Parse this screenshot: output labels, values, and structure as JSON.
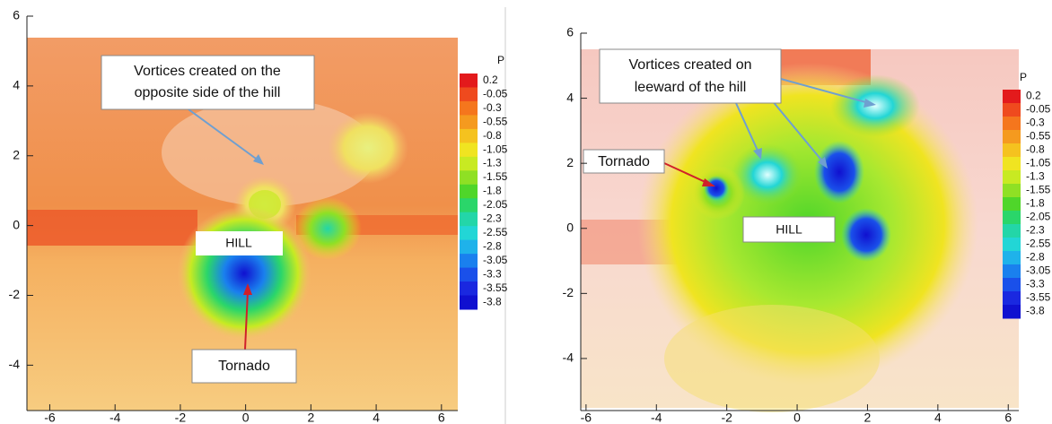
{
  "chart_data": [
    {
      "type": "contour",
      "xlim": [
        -6.7,
        6.5
      ],
      "ylim": [
        -5.3,
        6
      ],
      "xticks": [
        -6,
        -4,
        -2,
        0,
        2,
        4,
        6
      ],
      "yticks": [
        -4,
        -2,
        0,
        2,
        4,
        6
      ],
      "annotations": [
        [
          "Vortices created on the",
          "opposite side of the hill"
        ],
        [
          "HILL"
        ],
        [
          "Tornado"
        ]
      ],
      "colorbar": {
        "title": "P",
        "levels": [
          0.2,
          -0.05,
          -0.3,
          -0.55,
          -0.8,
          -1.05,
          -1.3,
          -1.55,
          -1.8,
          -2.05,
          -2.3,
          -2.55,
          -2.8,
          -3.05,
          -3.3,
          -3.55,
          -3.8
        ],
        "colors": [
          "#e31a1c",
          "#ef4a1e",
          "#f5761d",
          "#f59a1f",
          "#f5c21f",
          "#f0e421",
          "#c8ea22",
          "#8fe024",
          "#4fd62a",
          "#2ad66a",
          "#23d6a8",
          "#22d6d6",
          "#1fb2ea",
          "#1a80ee",
          "#1a50ea",
          "#1a28e0",
          "#1010d0"
        ]
      }
    },
    {
      "type": "contour",
      "xlim": [
        -6.15,
        6.3
      ],
      "ylim": [
        -5.6,
        6
      ],
      "xticks": [
        -6,
        -4,
        -2,
        0,
        2,
        4,
        6
      ],
      "yticks": [
        -4,
        -2,
        0,
        2,
        4,
        6
      ],
      "annotations": [
        [
          "Vortices created on",
          "leeward of the hill"
        ],
        [
          "Tornado"
        ],
        [
          "HILL"
        ]
      ],
      "colorbar": {
        "title": "P",
        "levels": [
          0.2,
          -0.05,
          -0.3,
          -0.55,
          -0.8,
          -1.05,
          -1.3,
          -1.55,
          -1.8,
          -2.05,
          -2.3,
          -2.55,
          -2.8,
          -3.05,
          -3.3,
          -3.55,
          -3.8
        ],
        "colors": [
          "#e31a1c",
          "#ef4a1e",
          "#f5761d",
          "#f59a1f",
          "#f5c21f",
          "#f0e421",
          "#c8ea22",
          "#8fe024",
          "#4fd62a",
          "#2ad66a",
          "#23d6a8",
          "#22d6d6",
          "#1fb2ea",
          "#1a80ee",
          "#1a50ea",
          "#1a28e0",
          "#1010d0"
        ]
      }
    }
  ]
}
